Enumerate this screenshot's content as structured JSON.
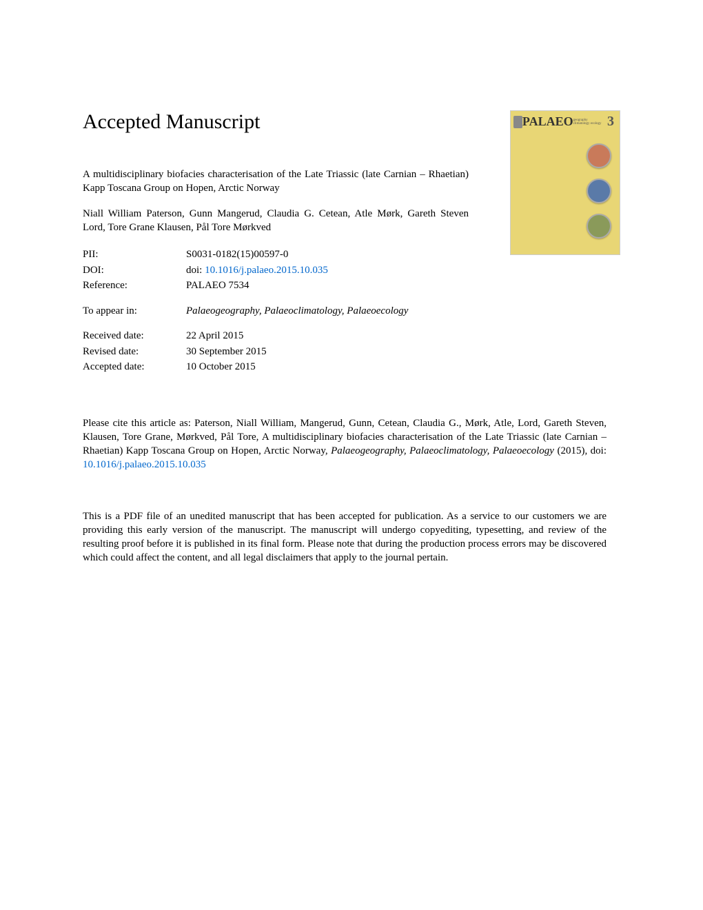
{
  "heading": "Accepted Manuscript",
  "cover": {
    "palaeo": "PALAEO",
    "subtext": "geography\nclimatology\necology",
    "number": "3",
    "circles": [
      "#c97a5a",
      "#5a7aa8",
      "#8a9a5a"
    ]
  },
  "title": "A multidisciplinary biofacies characterisation of the Late Triassic (late Carnian – Rhaetian) Kapp Toscana Group on Hopen, Arctic Norway",
  "authors": "Niall William Paterson, Gunn Mangerud, Claudia G. Cetean, Atle Mørk, Gareth Steven Lord, Tore Grane Klausen, Pål Tore Mørkved",
  "meta": {
    "pii": {
      "label": "PII:",
      "value": "S0031-0182(15)00597-0"
    },
    "doi": {
      "label": "DOI:",
      "prefix": "doi: ",
      "link": "10.1016/j.palaeo.2015.10.035"
    },
    "reference": {
      "label": "Reference:",
      "value": "PALAEO 7534"
    },
    "appear": {
      "label": "To appear in:",
      "value": "Palaeogeography, Palaeoclimatology, Palaeoecology"
    },
    "received": {
      "label": "Received date:",
      "value": "22 April 2015"
    },
    "revised": {
      "label": "Revised date:",
      "value": "30 September 2015"
    },
    "accepted": {
      "label": "Accepted date:",
      "value": "10 October 2015"
    }
  },
  "citation": {
    "prefix": "Please cite this article as: Paterson, Niall William, Mangerud, Gunn, Cetean, Claudia G., Mørk, Atle, Lord, Gareth Steven, Klausen, Tore Grane, Mørkved, Pål Tore, A multidisciplinary biofacies characterisation of the Late Triassic (late Carnian – Rhaetian) Kapp Toscana Group on Hopen, Arctic Norway, ",
    "journal": "Palaeogeography, Palaeoclimatology, Palaeoecology",
    "middle": " (2015),  doi: ",
    "link": "10.1016/j.palaeo.2015.10.035"
  },
  "disclaimer": "This is a PDF file of an unedited manuscript that has been accepted for publication. As a service to our customers we are providing this early version of the manuscript. The manuscript will undergo copyediting, typesetting, and review of the resulting proof before it is published in its final form. Please note that during the production process errors may be discovered which could affect the content, and all legal disclaimers that apply to the journal pertain."
}
